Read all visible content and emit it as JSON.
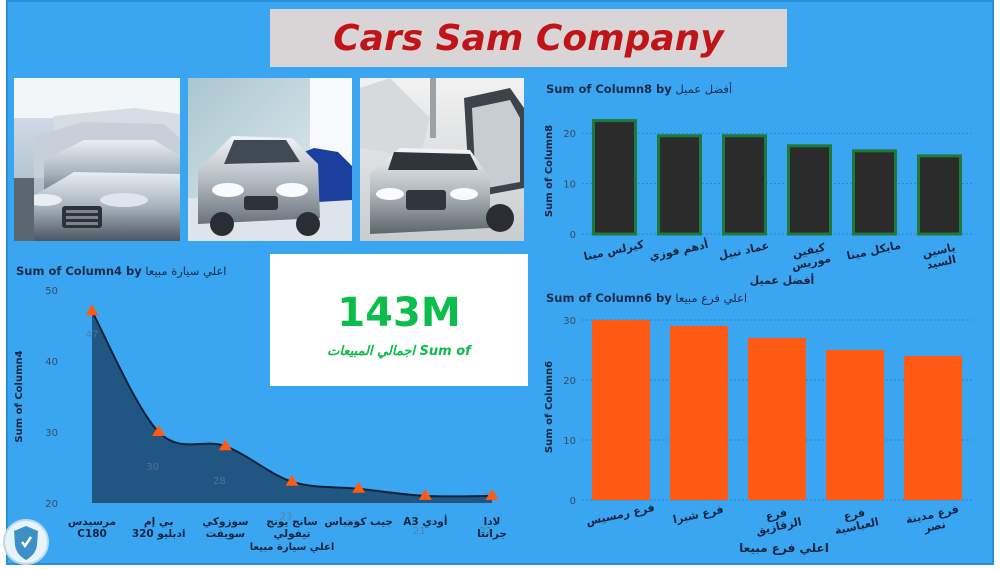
{
  "header": {
    "title": "Cars Sam Company"
  },
  "kpi": {
    "value": "143M",
    "label": "اجمالي المبيعات Sum of"
  },
  "colors": {
    "background": "#3aa6f2",
    "title": "#c01418",
    "kpi": "#0bbd4a",
    "bar_dark": "#2b2b2b",
    "bar_border": "#1e7a3a",
    "bar_orange": "#ff5a14",
    "area_fill": "#1f4f7a",
    "marker": "#ff5a14"
  },
  "photos": [
    {
      "name": "mercedes-lineup-photo"
    },
    {
      "name": "silver-sports-car-photo"
    },
    {
      "name": "open-doors-car-photo"
    }
  ],
  "chart_data": [
    {
      "id": "best-customer",
      "type": "bar",
      "title_en": "Sum of Column8 by",
      "title_ar": "أفضل عميل",
      "xlabel": "أفضل عميل",
      "ylabel": "Sum of Column8",
      "categories": [
        "كيرلس مينا",
        "أدهم فوزي",
        "عماد نبيل",
        "كيفين موريس",
        "مايكل مينا",
        "ياسين السيد"
      ],
      "values": [
        22.5,
        19.5,
        19.5,
        17.5,
        16.5,
        15.5
      ],
      "ylim": [
        0,
        25
      ],
      "yticks": [
        0,
        10,
        20
      ],
      "grid": true
    },
    {
      "id": "top-car",
      "type": "area",
      "title_en": "Sum of Column4 by",
      "title_ar": "اعلي سيارة مبيعا",
      "xlabel": "اعلي سيارة مبيعا",
      "ylabel": "Sum of Column4",
      "categories": [
        "مرسيدس C180",
        "بي إم دبليو 320i",
        "سوزوكي سويفت",
        "سانج يونج تيفولي",
        "جيب كومباس",
        "A3 أودي",
        "لادا جرانتا"
      ],
      "values": [
        47,
        30,
        28,
        23,
        22,
        21,
        21
      ],
      "data_labels": [
        "47",
        "30",
        "28",
        "23",
        "22",
        "21",
        "21"
      ],
      "ylim": [
        20,
        50
      ],
      "yticks": [
        20,
        30,
        40,
        50
      ],
      "grid": false
    },
    {
      "id": "top-branch",
      "type": "bar",
      "title_en": "Sum of Column6 by",
      "title_ar": "اعلي فرع مبيعا",
      "xlabel": "اعلي فرع مبيعا",
      "ylabel": "Sum of Column6",
      "categories": [
        "فرع رمسيس",
        "فرع شبرا",
        "فرع الزقازيق",
        "فرع العباسية",
        "فرع مدينة نصر"
      ],
      "values": [
        30,
        29,
        27,
        25,
        24
      ],
      "ylim": [
        0,
        31
      ],
      "yticks": [
        0,
        10,
        20,
        30
      ],
      "grid": true
    }
  ]
}
